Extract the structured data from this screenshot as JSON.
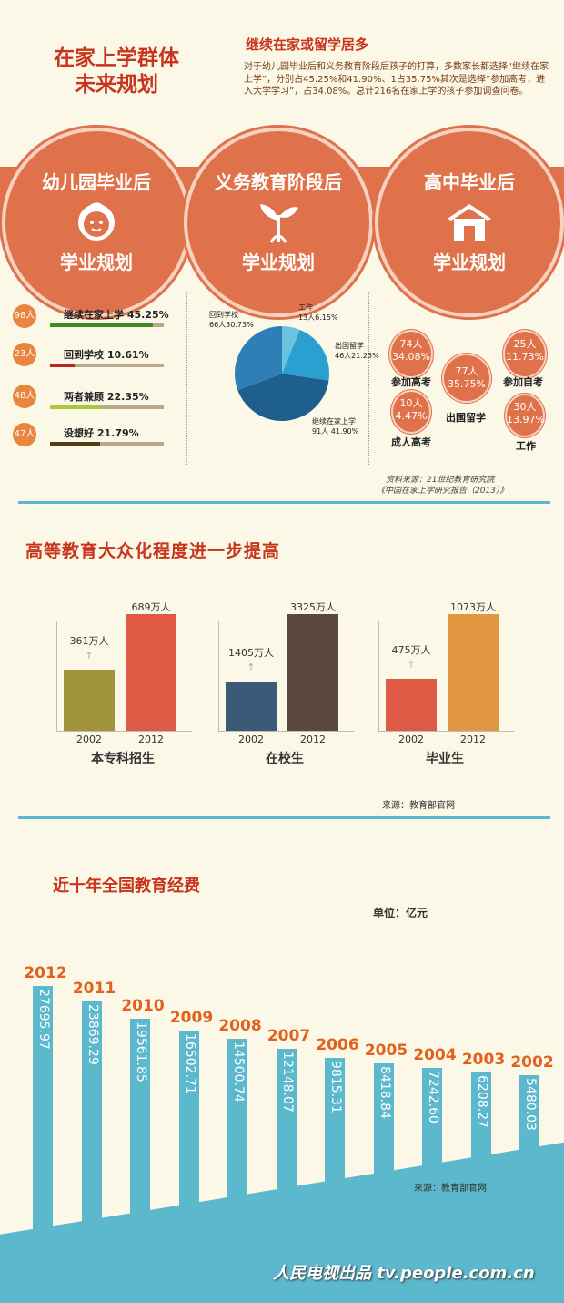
{
  "section1": {
    "title_line1": "在家上学群体",
    "title_line2": "未来规划",
    "subtitle": "继续在家或留学居多",
    "intro": "对于幼儿园毕业后和义务教育阶段后孩子的打算，多数家长都选择“继续在家上学”，分别占45.25%和41.90%、1占35.75%其次是选择“参加高考，进入大学学习”，占34.08%。总计216名在家上学的孩子参加调查问卷。",
    "circles": [
      {
        "top": "幼儿园毕业后",
        "bottom": "学业规划",
        "icon": "baby-face-icon"
      },
      {
        "top": "义务教育阶段后",
        "bottom": "学业规划",
        "icon": "sprout-icon"
      },
      {
        "top": "高中毕业后",
        "bottom": "学业规划",
        "icon": "house-icon"
      }
    ],
    "source_line1": "资料来源：21世纪教育研究院",
    "source_line2": "《中国在家上学研究报告（2013）》"
  },
  "chart_data": [
    {
      "type": "bar",
      "title": "",
      "categories": [
        "继续在家上学",
        "回到学校",
        "两者兼顾",
        "没想好"
      ],
      "counts": [
        "98人",
        "23人",
        "48人",
        "47人"
      ],
      "labels": [
        "继续在家上学 45.25%",
        "回到学校 10.61%",
        "两者兼顾 22.35%",
        "没想好 21.79%"
      ],
      "values": [
        45.25,
        10.61,
        22.35,
        21.79
      ],
      "colors": [
        "#3f8b28",
        "#b8251b",
        "#a9c93a",
        "#5a3c12"
      ]
    },
    {
      "type": "pie",
      "slices": [
        {
          "label": "继续在家上学",
          "value_text": "91人 41.90%",
          "value": 41.9,
          "color": "#1f5f8e"
        },
        {
          "label": "回到学校",
          "value_text": "66人30.73%",
          "value": 30.73,
          "color": "#2e7fb6"
        },
        {
          "label": "工作",
          "value_text": "13人6.15%",
          "value": 6.15,
          "color": "#6cc3e0"
        },
        {
          "label": "出国留学",
          "value_text": "46人21.23%",
          "value": 21.23,
          "color": "#2aa0d0"
        }
      ]
    },
    {
      "type": "bubble",
      "items": [
        {
          "count": "74人",
          "pct": "34.08%",
          "label": "参加高考",
          "value": 34.08
        },
        {
          "count": "77人",
          "pct": "35.75%",
          "label": "出国留学",
          "value": 35.75
        },
        {
          "count": "25人",
          "pct": "11.73%",
          "label": "参加自考",
          "value": 11.73
        },
        {
          "count": "10人",
          "pct": "4.47%",
          "label": "成人高考",
          "value": 4.47
        },
        {
          "count": "30人",
          "pct": "13.97%",
          "label": "工作",
          "value": 13.97
        }
      ]
    },
    {
      "type": "bar",
      "title": "高等教育大众化程度进一步提高",
      "groups": [
        {
          "name": "本专科招生",
          "years": [
            "2002",
            "2012"
          ],
          "value_labels": [
            "361万人",
            "689万人"
          ],
          "values": [
            361,
            689
          ],
          "colors": [
            "#a09338",
            "#de5a45"
          ]
        },
        {
          "name": "在校生",
          "years": [
            "2002",
            "2012"
          ],
          "value_labels": [
            "1405万人",
            "3325万人"
          ],
          "values": [
            1405,
            3325
          ],
          "colors": [
            "#3b5a78",
            "#5c4740"
          ]
        },
        {
          "name": "毕业生",
          "years": [
            "2002",
            "2012"
          ],
          "value_labels": [
            "475万人",
            "1073万人"
          ],
          "values": [
            475,
            1073
          ],
          "colors": [
            "#de5a45",
            "#e09740"
          ]
        }
      ],
      "source": "来源：教育部官网"
    },
    {
      "type": "bar",
      "title": "近十年全国教育经费",
      "unit": "单位：亿元",
      "categories": [
        "2012",
        "2011",
        "2010",
        "2009",
        "2008",
        "2007",
        "2006",
        "2005",
        "2004",
        "2003",
        "2002"
      ],
      "value_labels": [
        "27695.97",
        "23869.29",
        "19561.85",
        "16502.71",
        "14500.74",
        "12148.07",
        "9815.31",
        "8418.84",
        "7242.60",
        "6208.27",
        "5480.03"
      ],
      "values": [
        27695.97,
        23869.29,
        19561.85,
        16502.71,
        14500.74,
        12148.07,
        9815.31,
        8418.84,
        7242.6,
        6208.27,
        5480.03
      ],
      "color": "#5cb8cc",
      "source": "来源：教育部官网"
    }
  ],
  "footer": "人民电视出品 tv.people.com.cn"
}
